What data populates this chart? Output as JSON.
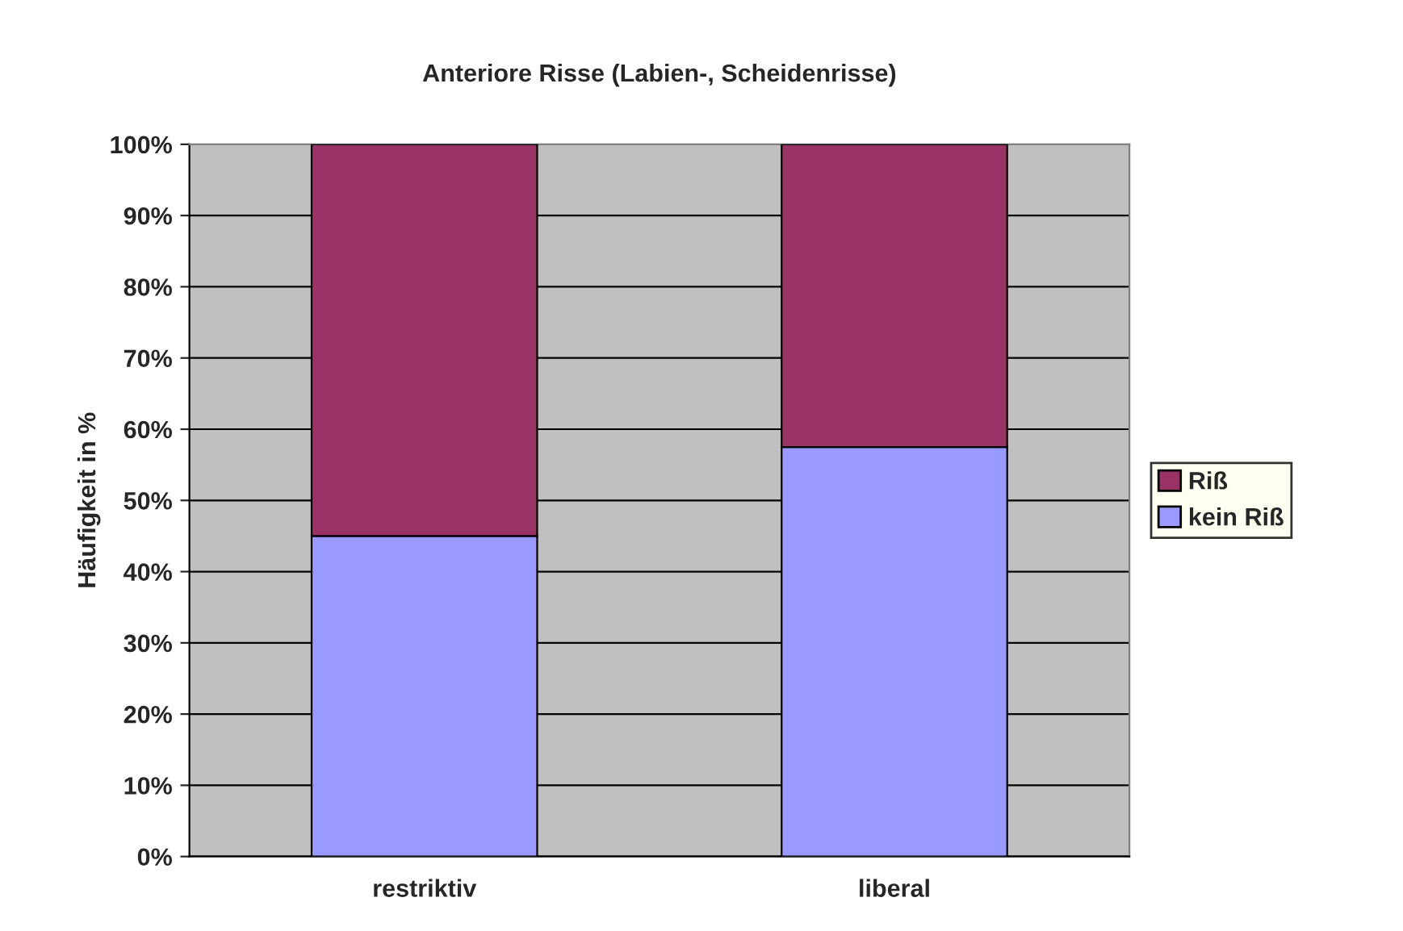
{
  "chart_data": {
    "type": "bar",
    "title": "Anteriore Risse (Labien-, Scheidenrisse)",
    "ylabel": "Häufigkeit in %",
    "categories": [
      "restriktiv",
      "liberal"
    ],
    "stacked": true,
    "series": [
      {
        "name": "kein Riß",
        "color": "#9999ff",
        "values": [
          45,
          57.5
        ]
      },
      {
        "name": "Riß",
        "color": "#993366",
        "values": [
          55,
          42.5
        ]
      }
    ],
    "ylim": [
      0,
      100
    ],
    "yticks": [
      {
        "value": 0,
        "label": "0%"
      },
      {
        "value": 10,
        "label": "10%"
      },
      {
        "value": 20,
        "label": "20%"
      },
      {
        "value": 30,
        "label": "30%"
      },
      {
        "value": 40,
        "label": "40%"
      },
      {
        "value": 50,
        "label": "50%"
      },
      {
        "value": 60,
        "label": "60%"
      },
      {
        "value": 70,
        "label": "70%"
      },
      {
        "value": 80,
        "label": "80%"
      },
      {
        "value": 90,
        "label": "90%"
      },
      {
        "value": 100,
        "label": "100%"
      }
    ],
    "grid": "y",
    "legend": "right"
  }
}
